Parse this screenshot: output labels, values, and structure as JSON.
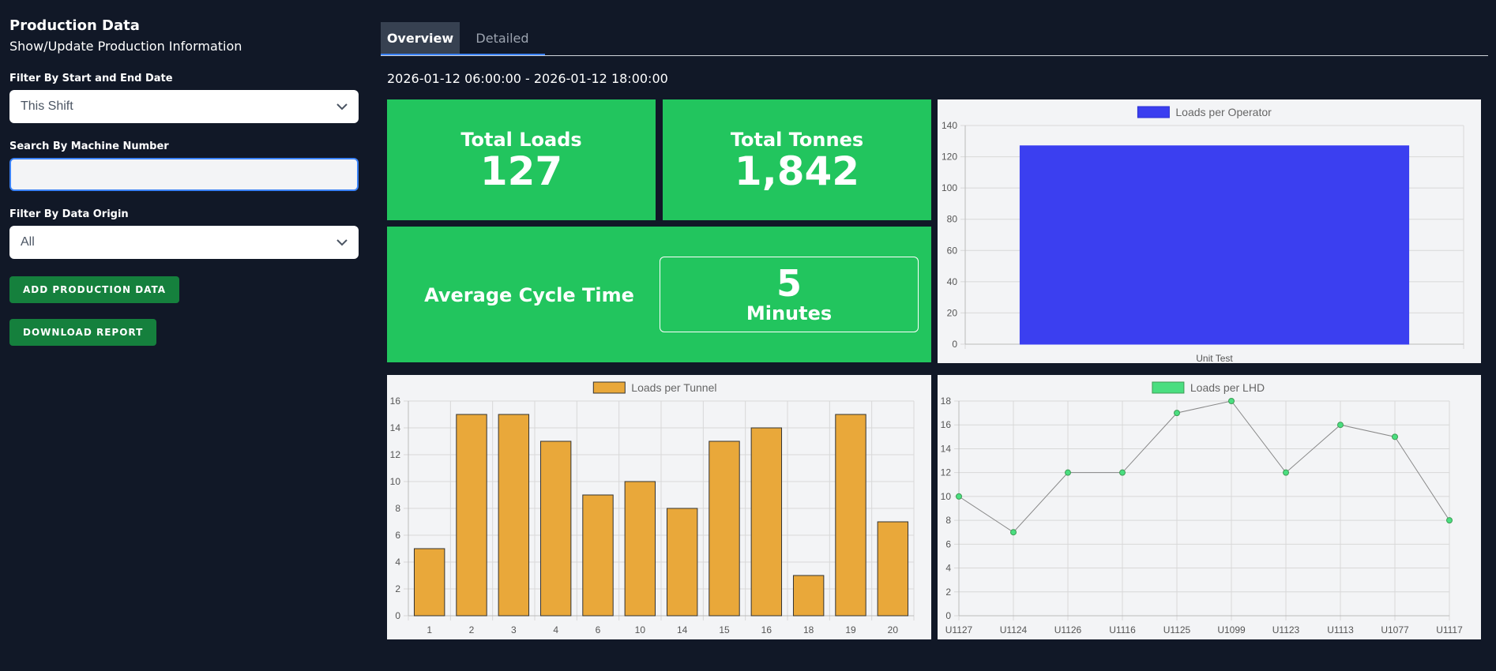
{
  "sidebar": {
    "title": "Production Data",
    "subtitle": "Show/Update Production Information",
    "date_filter": {
      "label": "Filter By Start and End Date",
      "value": "This Shift"
    },
    "machine_search": {
      "label": "Search By Machine Number",
      "value": "",
      "placeholder": ""
    },
    "origin_filter": {
      "label": "Filter By Data Origin",
      "value": "All"
    },
    "add_button": "ADD PRODUCTION DATA",
    "download_button": "DOWNLOAD REPORT"
  },
  "tabs": [
    {
      "label": "Overview",
      "active": true
    },
    {
      "label": "Detailed",
      "active": false
    }
  ],
  "date_range": "2026-01-12 06:00:00 - 2026-01-12 18:00:00",
  "stats": {
    "total_loads": {
      "label": "Total Loads",
      "value": "127"
    },
    "total_tonnes": {
      "label": "Total Tonnes",
      "value": "1,842"
    },
    "avg_cycle": {
      "label": "Average Cycle Time",
      "value": "5",
      "unit": "Minutes"
    }
  },
  "colors": {
    "background": "#111827",
    "card": "#22c55e",
    "button": "#15803d",
    "operator_bar": "#3b3ff0",
    "tunnel_bar": "#e9a83a",
    "lhd_point": "#4ade80"
  },
  "chart_data": [
    {
      "type": "bar",
      "categories": [
        "Unit Test"
      ],
      "series": [
        {
          "name": "Loads per Operator",
          "values": [
            127
          ]
        }
      ],
      "title": "",
      "xlabel": "",
      "ylabel": "",
      "ylim": [
        0,
        140
      ],
      "yticks": [
        0,
        20,
        40,
        60,
        80,
        100,
        120,
        140
      ],
      "grid": true,
      "legend": "top-center"
    },
    {
      "type": "bar",
      "categories": [
        "1",
        "2",
        "3",
        "4",
        "6",
        "10",
        "14",
        "15",
        "16",
        "18",
        "19",
        "20"
      ],
      "series": [
        {
          "name": "Loads per Tunnel",
          "values": [
            5,
            15,
            15,
            13,
            9,
            10,
            8,
            13,
            14,
            3,
            15,
            7
          ]
        }
      ],
      "title": "",
      "xlabel": "",
      "ylabel": "",
      "ylim": [
        0,
        16
      ],
      "yticks": [
        0,
        2,
        4,
        6,
        8,
        10,
        12,
        14,
        16
      ],
      "grid": true,
      "legend": "top-center"
    },
    {
      "type": "line",
      "categories": [
        "U1127",
        "U1124",
        "U1126",
        "U1116",
        "U1125",
        "U1099",
        "U1123",
        "U1113",
        "U1077",
        "U1117"
      ],
      "series": [
        {
          "name": "Loads per LHD",
          "values": [
            10,
            7,
            12,
            12,
            17,
            18,
            12,
            16,
            15,
            8
          ]
        }
      ],
      "title": "",
      "xlabel": "",
      "ylabel": "",
      "ylim": [
        0,
        18
      ],
      "yticks": [
        0,
        2,
        4,
        6,
        8,
        10,
        12,
        14,
        16,
        18
      ],
      "grid": true,
      "legend": "top-center"
    }
  ]
}
